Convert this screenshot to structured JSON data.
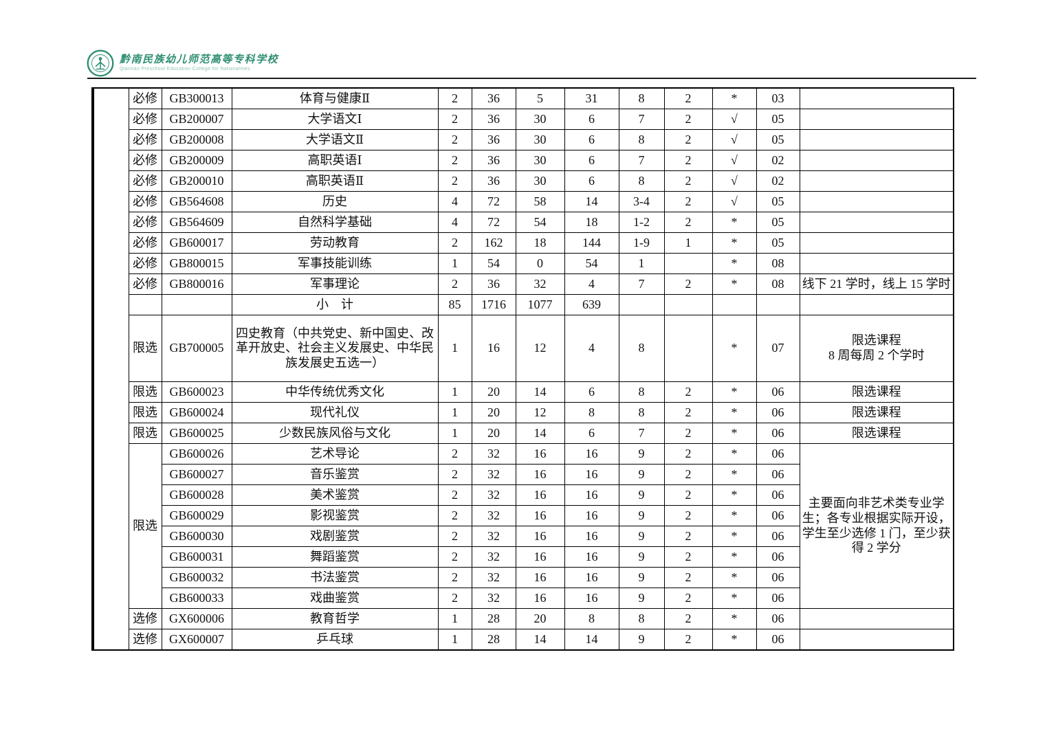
{
  "header": {
    "school_name_cn": "黔南民族幼儿师范高等专科学校",
    "school_name_en": "Qiannan Preschool Education College for Nationalities",
    "logo_color": "#2f8f72"
  },
  "table": {
    "rows": [
      {
        "type": "必修",
        "code": "GB300013",
        "name": "体育与健康Ⅱ",
        "credits": "2",
        "total": "36",
        "theory": "5",
        "practice": "31",
        "semester": "8",
        "weekly": "2",
        "assess": "*",
        "dept": "03",
        "remark": ""
      },
      {
        "type": "必修",
        "code": "GB200007",
        "name": "大学语文Ⅰ",
        "credits": "2",
        "total": "36",
        "theory": "30",
        "practice": "6",
        "semester": "7",
        "weekly": "2",
        "assess": "√",
        "dept": "05",
        "remark": ""
      },
      {
        "type": "必修",
        "code": "GB200008",
        "name": "大学语文Ⅱ",
        "credits": "2",
        "total": "36",
        "theory": "30",
        "practice": "6",
        "semester": "8",
        "weekly": "2",
        "assess": "√",
        "dept": "05",
        "remark": ""
      },
      {
        "type": "必修",
        "code": "GB200009",
        "name": "高职英语Ⅰ",
        "credits": "2",
        "total": "36",
        "theory": "30",
        "practice": "6",
        "semester": "7",
        "weekly": "2",
        "assess": "√",
        "dept": "02",
        "remark": ""
      },
      {
        "type": "必修",
        "code": "GB200010",
        "name": "高职英语Ⅱ",
        "credits": "2",
        "total": "36",
        "theory": "30",
        "practice": "6",
        "semester": "8",
        "weekly": "2",
        "assess": "√",
        "dept": "02",
        "remark": ""
      },
      {
        "type": "必修",
        "code": "GB564608",
        "name": "历史",
        "credits": "4",
        "total": "72",
        "theory": "58",
        "practice": "14",
        "semester": "3-4",
        "weekly": "2",
        "assess": "√",
        "dept": "05",
        "remark": ""
      },
      {
        "type": "必修",
        "code": "GB564609",
        "name": "自然科学基础",
        "credits": "4",
        "total": "72",
        "theory": "54",
        "practice": "18",
        "semester": "1-2",
        "weekly": "2",
        "assess": "*",
        "dept": "05",
        "remark": ""
      },
      {
        "type": "必修",
        "code": "GB600017",
        "name": "劳动教育",
        "credits": "2",
        "total": "162",
        "theory": "18",
        "practice": "144",
        "semester": "1-9",
        "weekly": "1",
        "assess": "*",
        "dept": "05",
        "remark": ""
      },
      {
        "type": "必修",
        "code": "GB800015",
        "name": "军事技能训练",
        "credits": "1",
        "total": "54",
        "theory": "0",
        "practice": "54",
        "semester": "1",
        "weekly": "",
        "assess": "*",
        "dept": "08",
        "remark": ""
      },
      {
        "type": "必修",
        "code": "GB800016",
        "name": "军事理论",
        "credits": "2",
        "total": "36",
        "theory": "32",
        "practice": "4",
        "semester": "7",
        "weekly": "2",
        "assess": "*",
        "dept": "08",
        "remark": "线下 21 学时，线上 15 学时"
      },
      {
        "type": "",
        "code": "",
        "name": "小　计",
        "credits": "85",
        "total": "1716",
        "theory": "1077",
        "practice": "639",
        "semester": "",
        "weekly": "",
        "assess": "",
        "dept": "",
        "remark": ""
      },
      {
        "type": "限选",
        "code": "GB700005",
        "name": "四史教育（中共党史、新中国史、改革开放史、社会主义发展史、中华民族发展史五选一）",
        "credits": "1",
        "total": "16",
        "theory": "12",
        "practice": "4",
        "semester": "8",
        "weekly": "",
        "assess": "*",
        "dept": "07",
        "remark": "限选课程\n8 周每周 2 个学时",
        "tall": true
      },
      {
        "type": "限选",
        "code": "GB600023",
        "name": "中华传统优秀文化",
        "credits": "1",
        "total": "20",
        "theory": "14",
        "practice": "6",
        "semester": "8",
        "weekly": "2",
        "assess": "*",
        "dept": "06",
        "remark": "限选课程"
      },
      {
        "type": "限选",
        "code": "GB600024",
        "name": "现代礼仪",
        "credits": "1",
        "total": "20",
        "theory": "12",
        "practice": "8",
        "semester": "8",
        "weekly": "2",
        "assess": "*",
        "dept": "06",
        "remark": "限选课程"
      },
      {
        "type": "限选",
        "code": "GB600025",
        "name": "少数民族风俗与文化",
        "credits": "1",
        "total": "20",
        "theory": "14",
        "practice": "6",
        "semester": "7",
        "weekly": "2",
        "assess": "*",
        "dept": "06",
        "remark": "限选课程"
      },
      {
        "type": "限选",
        "typeSpan": 8,
        "code": "GB600026",
        "name": "艺术导论",
        "credits": "2",
        "total": "32",
        "theory": "16",
        "practice": "16",
        "semester": "9",
        "weekly": "2",
        "assess": "*",
        "dept": "06",
        "remark": "主要面向非艺术类专业学生；各专业根据实际开设，学生至少选修 1 门，至少获得 2 学分",
        "remarkSpan": 8
      },
      {
        "typeSpan": 0,
        "code": "GB600027",
        "name": "音乐鉴赏",
        "credits": "2",
        "total": "32",
        "theory": "16",
        "practice": "16",
        "semester": "9",
        "weekly": "2",
        "assess": "*",
        "dept": "06",
        "remarkSpan": 0
      },
      {
        "typeSpan": 0,
        "code": "GB600028",
        "name": "美术鉴赏",
        "credits": "2",
        "total": "32",
        "theory": "16",
        "practice": "16",
        "semester": "9",
        "weekly": "2",
        "assess": "*",
        "dept": "06",
        "remarkSpan": 0
      },
      {
        "typeSpan": 0,
        "code": "GB600029",
        "name": "影视鉴赏",
        "credits": "2",
        "total": "32",
        "theory": "16",
        "practice": "16",
        "semester": "9",
        "weekly": "2",
        "assess": "*",
        "dept": "06",
        "remarkSpan": 0
      },
      {
        "typeSpan": 0,
        "code": "GB600030",
        "name": "戏剧鉴赏",
        "credits": "2",
        "total": "32",
        "theory": "16",
        "practice": "16",
        "semester": "9",
        "weekly": "2",
        "assess": "*",
        "dept": "06",
        "remarkSpan": 0
      },
      {
        "typeSpan": 0,
        "code": "GB600031",
        "name": "舞蹈鉴赏",
        "credits": "2",
        "total": "32",
        "theory": "16",
        "practice": "16",
        "semester": "9",
        "weekly": "2",
        "assess": "*",
        "dept": "06",
        "remarkSpan": 0
      },
      {
        "typeSpan": 0,
        "code": "GB600032",
        "name": "书法鉴赏",
        "credits": "2",
        "total": "32",
        "theory": "16",
        "practice": "16",
        "semester": "9",
        "weekly": "2",
        "assess": "*",
        "dept": "06",
        "remarkSpan": 0
      },
      {
        "typeSpan": 0,
        "code": "GB600033",
        "name": "戏曲鉴赏",
        "credits": "2",
        "total": "32",
        "theory": "16",
        "practice": "16",
        "semester": "9",
        "weekly": "2",
        "assess": "*",
        "dept": "06",
        "remarkSpan": 0
      },
      {
        "type": "选修",
        "code": "GX600006",
        "name": "教育哲学",
        "credits": "1",
        "total": "28",
        "theory": "20",
        "practice": "8",
        "semester": "8",
        "weekly": "2",
        "assess": "*",
        "dept": "06",
        "remark": ""
      },
      {
        "type": "选修",
        "code": "GX600007",
        "name": "乒乓球",
        "credits": "1",
        "total": "28",
        "theory": "14",
        "practice": "14",
        "semester": "9",
        "weekly": "2",
        "assess": "*",
        "dept": "06",
        "remark": ""
      }
    ]
  }
}
